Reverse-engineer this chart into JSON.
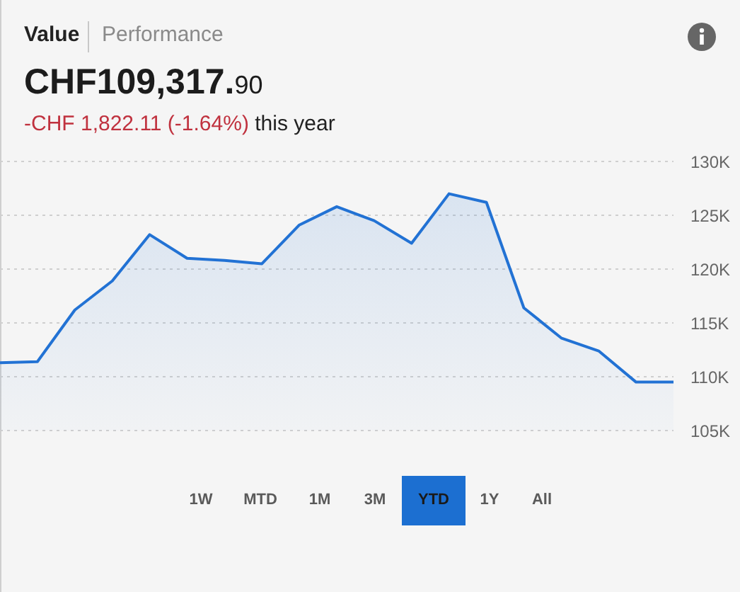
{
  "chart_data": {
    "type": "area",
    "title": "CHF109,317.90",
    "subtitle": "-CHF 1,822.11 (-1.64%)",
    "annotations": [
      "Value",
      "Performance",
      "this year",
      "1W",
      "MTD",
      "1M",
      "3M",
      "YTD",
      "1Y",
      "All"
    ],
    "categories": [
      null,
      null,
      null,
      null,
      null,
      null,
      null,
      null,
      null,
      null,
      null,
      null,
      null,
      null,
      null,
      null,
      null,
      null,
      null
    ],
    "values": [
      111300,
      111400,
      116200,
      118900,
      123200,
      121000,
      120800,
      120500,
      124100,
      125800,
      124500,
      122400,
      127000,
      126200,
      116400,
      113600,
      112400,
      109500,
      109500
    ],
    "color": "#2272d4",
    "ylim": [
      105000,
      130000
    ],
    "yticks": [
      {
        "value": 105000,
        "label": "105K"
      },
      {
        "value": 110000,
        "label": "110K"
      },
      {
        "value": 115000,
        "label": "115K"
      },
      {
        "value": 120000,
        "label": "120K"
      },
      {
        "value": 125000,
        "label": "125K"
      },
      {
        "value": 130000,
        "label": "130K"
      }
    ],
    "grid": "y",
    "legend": false,
    "tick_labels": "y",
    "marker": "none",
    "line_style": "solid"
  }
}
